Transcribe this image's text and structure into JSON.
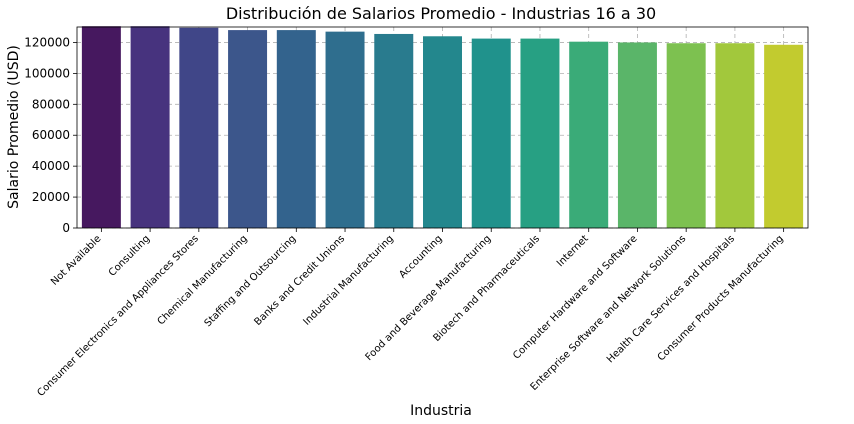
{
  "chart_data": {
    "type": "bar",
    "title": "Distribución de Salarios Promedio - Industrias 16 a 30",
    "xlabel": "Industria",
    "ylabel": "Salario Promedio (USD)",
    "ylim": [
      0,
      130000
    ],
    "yticks": [
      0,
      20000,
      40000,
      60000,
      80000,
      100000,
      120000
    ],
    "grid": true,
    "categories": [
      "Not Available",
      "Consulting",
      "Consumer Electronics and Appliances Stores",
      "Chemical Manufacturing",
      "Staffing and Outsourcing",
      "Banks and Credit Unions",
      "Industrial Manufacturing",
      "Accounting",
      "Food and Beverage Manufacturing",
      "Biotech and Pharmaceuticals",
      "Internet",
      "Computer Hardware and Software",
      "Enterprise Software and Network Solutions",
      "Health Care Services and Hospitals",
      "Consumer Products Manufacturing"
    ],
    "values": [
      130500,
      130500,
      129500,
      128000,
      128000,
      127000,
      125500,
      124000,
      122500,
      122500,
      120500,
      120000,
      119500,
      119500,
      118500
    ],
    "colors": [
      "#46185f",
      "#47337e",
      "#404688",
      "#3c568b",
      "#33638d",
      "#2f6e8e",
      "#297b8e",
      "#23878d",
      "#20928c",
      "#27a083",
      "#3aab78",
      "#5ab569",
      "#7dc150",
      "#a2c83c",
      "#c2cb2f"
    ]
  }
}
